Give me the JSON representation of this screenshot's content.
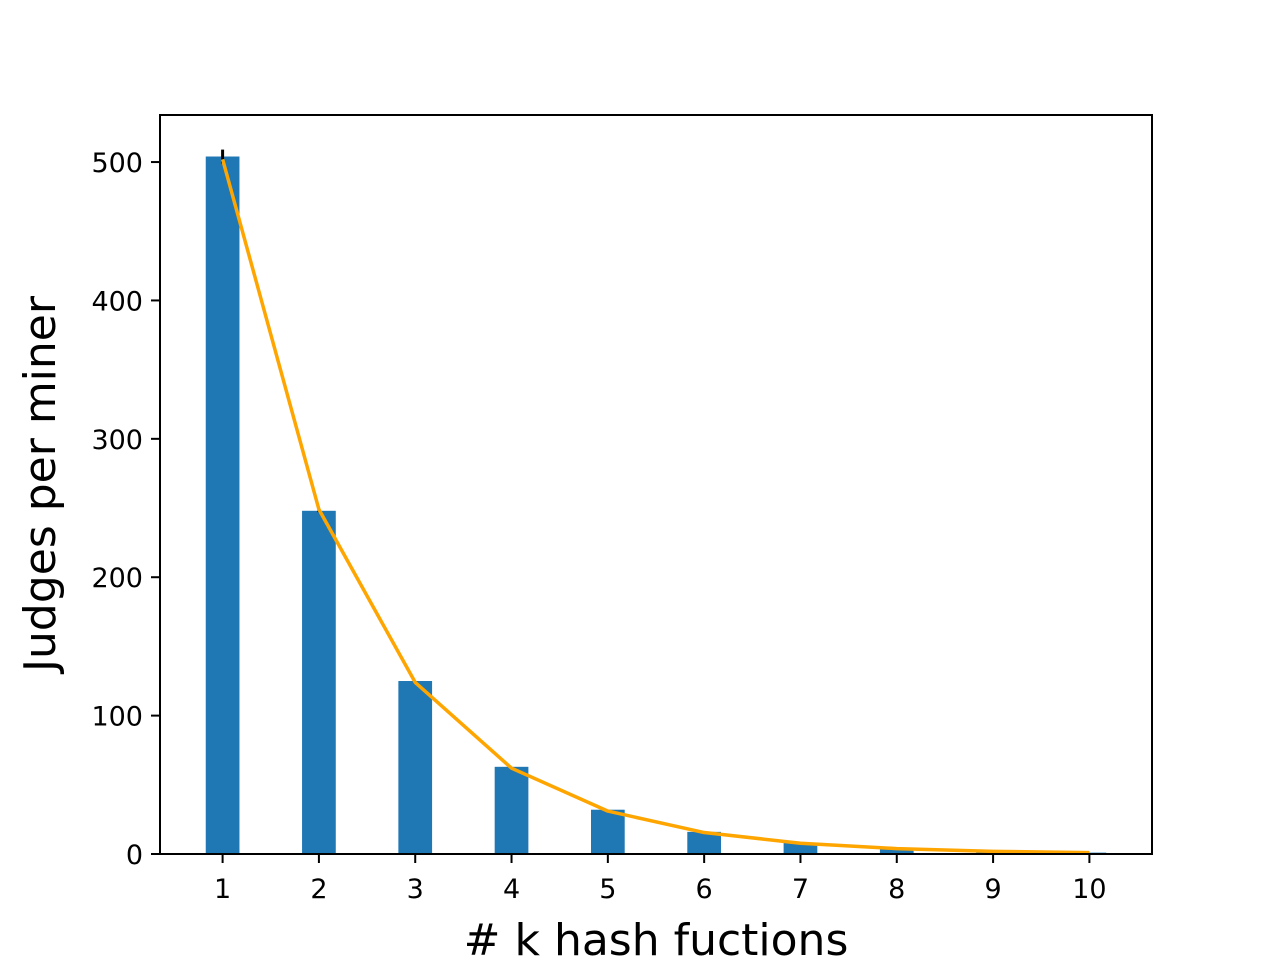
{
  "chart_data": {
    "type": "bar",
    "title": "",
    "xlabel": "# k hash fuctions",
    "ylabel": "Judges per miner",
    "categories": [
      "1",
      "2",
      "3",
      "4",
      "5",
      "6",
      "7",
      "8",
      "9",
      "10"
    ],
    "x": [
      1,
      2,
      3,
      4,
      5,
      6,
      7,
      8,
      9,
      10
    ],
    "series": [
      {
        "type": "bar",
        "color": "#1f77b4",
        "values": [
          504,
          248,
          125,
          63,
          32,
          16,
          8,
          4,
          2,
          1
        ],
        "error": [
          5,
          1,
          0,
          0,
          0,
          0,
          0,
          0,
          0,
          0
        ]
      },
      {
        "type": "line",
        "color": "#ffa500",
        "values": [
          502,
          249,
          124,
          62,
          31,
          15.5,
          7.8,
          3.9,
          1.9,
          1
        ]
      }
    ],
    "xlim": [
      0.35,
      10.65
    ],
    "ylim": [
      0,
      534
    ],
    "yticks": [
      0,
      100,
      200,
      300,
      400,
      500
    ],
    "yticklabels": [
      "0",
      "100",
      "200",
      "300",
      "400",
      "500"
    ],
    "grid": false,
    "legend": "none"
  }
}
